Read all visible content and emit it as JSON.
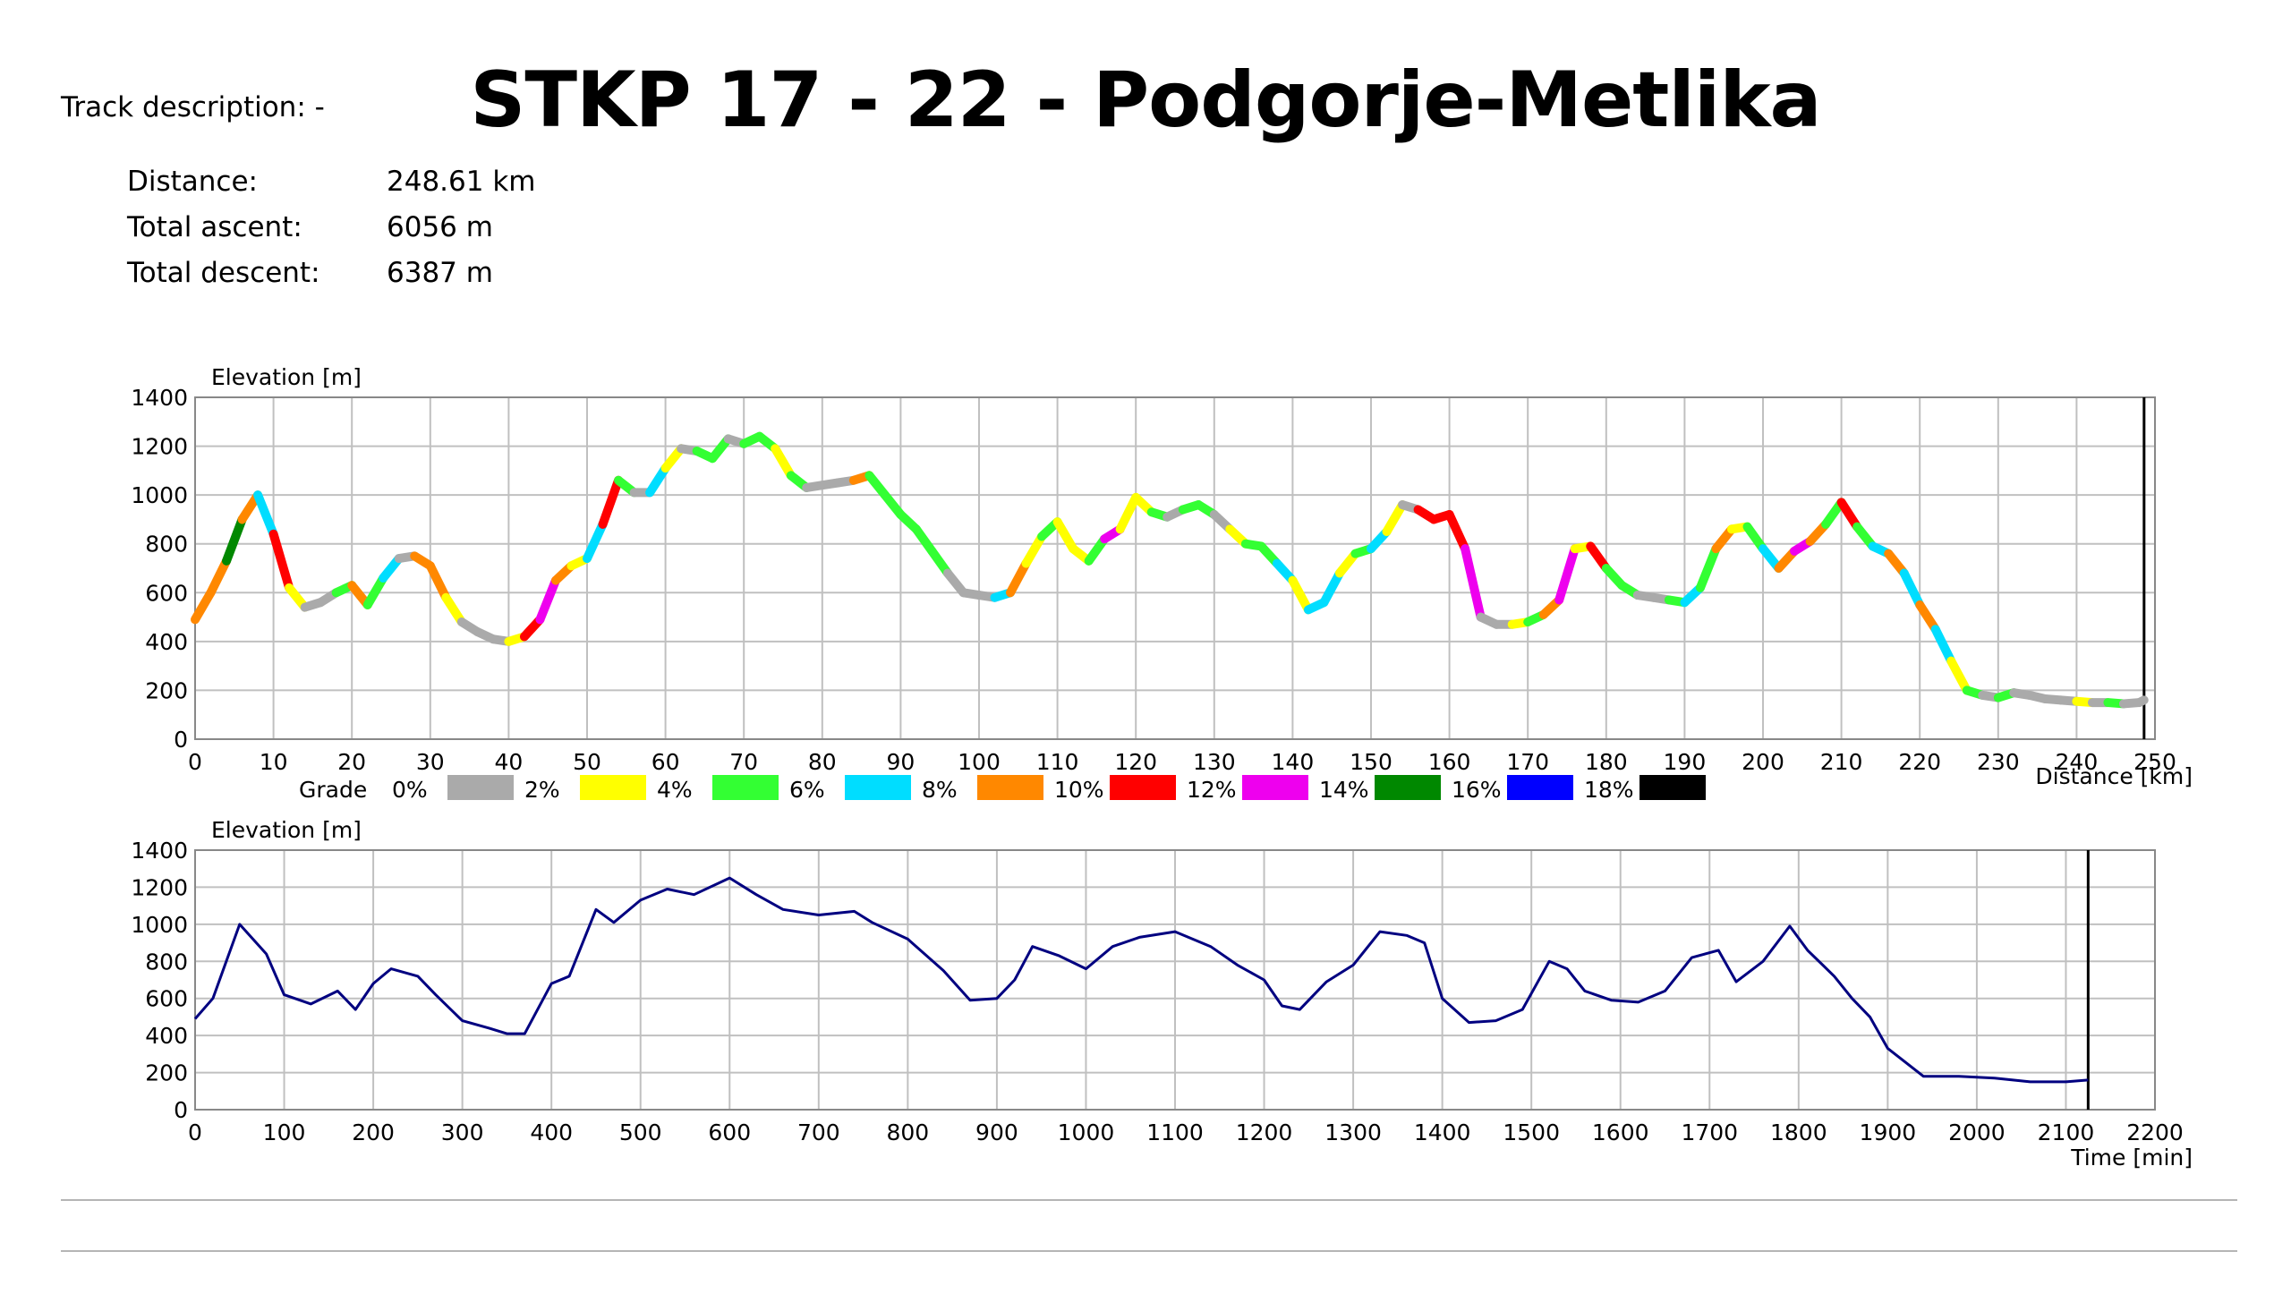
{
  "title": "STKP 17 - 22 - Podgorje-Metlika",
  "track_description": "Track description: -",
  "stats": [
    {
      "label": "Distance:",
      "value": "248.61 km"
    },
    {
      "label": "Total ascent:",
      "value": "6056 m"
    },
    {
      "label": "Total descent:",
      "value": "6387 m"
    }
  ],
  "colors": {
    "grade_0": "#aaaaaa",
    "grade_2": "#ffff00",
    "grade_4": "#33ff33",
    "grade_6": "#00ddff",
    "grade_8": "#ff8800",
    "grade_10": "#ff0000",
    "grade_12": "#ee00ee",
    "grade_14": "#008800",
    "grade_16": "#0000ff",
    "grade_18": "#000000",
    "time_line": "#000080",
    "grid": "#c0c0c0"
  },
  "legend": {
    "title": "Grade",
    "items": [
      {
        "label": "0%",
        "color": "#aaaaaa"
      },
      {
        "label": "2%",
        "color": "#ffff00"
      },
      {
        "label": "4%",
        "color": "#33ff33"
      },
      {
        "label": "6%",
        "color": "#00ddff"
      },
      {
        "label": "8%",
        "color": "#ff8800"
      },
      {
        "label": "10%",
        "color": "#ff0000"
      },
      {
        "label": "12%",
        "color": "#ee00ee"
      },
      {
        "label": "14%",
        "color": "#008800"
      },
      {
        "label": "16%",
        "color": "#0000ff"
      },
      {
        "label": "18%",
        "color": "#000000"
      }
    ]
  },
  "chart_data": [
    {
      "type": "line",
      "ylabel": "Elevation [m]",
      "xlabel": "Distance [km]",
      "xlim": [
        0,
        250
      ],
      "ylim": [
        0,
        1400
      ],
      "xticks": [
        0,
        10,
        20,
        30,
        40,
        50,
        60,
        70,
        80,
        90,
        100,
        110,
        120,
        130,
        140,
        150,
        160,
        170,
        180,
        190,
        200,
        210,
        220,
        230,
        240,
        250
      ],
      "yticks": [
        0,
        200,
        400,
        600,
        800,
        1000,
        1200,
        1400
      ],
      "grid": true,
      "end_marker_x": 248.61,
      "x": [
        0,
        2,
        4,
        6,
        8,
        10,
        12,
        14,
        16,
        18,
        20,
        22,
        24,
        26,
        28,
        30,
        32,
        34,
        36,
        38,
        40,
        42,
        44,
        46,
        48,
        50,
        52,
        54,
        56,
        58,
        60,
        62,
        64,
        66,
        68,
        70,
        72,
        74,
        76,
        78,
        80,
        82,
        84,
        86,
        88,
        90,
        92,
        94,
        96,
        98,
        100,
        102,
        104,
        106,
        108,
        110,
        112,
        114,
        116,
        118,
        120,
        122,
        124,
        126,
        128,
        130,
        132,
        134,
        136,
        138,
        140,
        142,
        144,
        146,
        148,
        150,
        152,
        154,
        156,
        158,
        160,
        162,
        164,
        166,
        168,
        170,
        172,
        174,
        176,
        178,
        180,
        182,
        184,
        186,
        188,
        190,
        192,
        194,
        196,
        198,
        200,
        202,
        204,
        206,
        208,
        210,
        212,
        214,
        216,
        218,
        220,
        222,
        224,
        226,
        228,
        230,
        232,
        234,
        236,
        238,
        240,
        242,
        244,
        246,
        248,
        248.6
      ],
      "y": [
        490,
        600,
        730,
        900,
        1000,
        840,
        620,
        540,
        560,
        600,
        630,
        550,
        660,
        740,
        750,
        710,
        580,
        480,
        440,
        410,
        400,
        420,
        490,
        650,
        710,
        740,
        880,
        1060,
        1010,
        1010,
        1110,
        1190,
        1180,
        1150,
        1230,
        1210,
        1240,
        1190,
        1080,
        1030,
        1040,
        1050,
        1060,
        1080,
        1000,
        920,
        860,
        770,
        680,
        600,
        590,
        580,
        600,
        720,
        830,
        890,
        780,
        730,
        820,
        860,
        990,
        930,
        910,
        940,
        960,
        920,
        860,
        800,
        790,
        720,
        650,
        530,
        560,
        680,
        760,
        780,
        850,
        960,
        940,
        900,
        920,
        780,
        500,
        470,
        470,
        480,
        510,
        570,
        780,
        790,
        700,
        630,
        590,
        580,
        570,
        560,
        620,
        780,
        860,
        870,
        780,
        700,
        770,
        810,
        880,
        970,
        870,
        790,
        760,
        680,
        550,
        450,
        320,
        200,
        180,
        170,
        190,
        180,
        165,
        160,
        155,
        150,
        150,
        145,
        150,
        160
      ],
      "grade_colors": [
        "#ff8800",
        "#ff8800",
        "#008800",
        "#ff8800",
        "#00ddff",
        "#ff0000",
        "#ffff00",
        "#aaaaaa",
        "#aaaaaa",
        "#33ff33",
        "#ff8800",
        "#33ff33",
        "#00ddff",
        "#aaaaaa",
        "#ff8800",
        "#ff8800",
        "#ffff00",
        "#aaaaaa",
        "#aaaaaa",
        "#aaaaaa",
        "#ffff00",
        "#ff0000",
        "#ee00ee",
        "#ff8800",
        "#ffff00",
        "#00ddff",
        "#ff0000",
        "#33ff33",
        "#aaaaaa",
        "#00ddff",
        "#ffff00",
        "#aaaaaa",
        "#33ff33",
        "#33ff33",
        "#aaaaaa",
        "#33ff33",
        "#33ff33",
        "#ffff00",
        "#33ff33",
        "#aaaaaa",
        "#aaaaaa",
        "#aaaaaa",
        "#ff8800",
        "#33ff33",
        "#33ff33",
        "#33ff33",
        "#33ff33",
        "#33ff33",
        "#aaaaaa",
        "#aaaaaa",
        "#aaaaaa",
        "#00ddff",
        "#ff8800",
        "#ffff00",
        "#33ff33",
        "#ffff00",
        "#ffff00",
        "#33ff33",
        "#ee00ee",
        "#ffff00",
        "#ffff00",
        "#33ff33",
        "#aaaaaa",
        "#33ff33",
        "#33ff33",
        "#aaaaaa",
        "#ffff00",
        "#33ff33",
        "#33ff33",
        "#00ddff",
        "#ffff00",
        "#00ddff",
        "#00ddff",
        "#ffff00",
        "#33ff33",
        "#00ddff",
        "#ffff00",
        "#aaaaaa",
        "#ff0000",
        "#ff0000",
        "#ff0000",
        "#ee00ee",
        "#aaaaaa",
        "#aaaaaa",
        "#ffff00",
        "#33ff33",
        "#ff8800",
        "#ee00ee",
        "#ffff00",
        "#ff0000",
        "#33ff33",
        "#33ff33",
        "#aaaaaa",
        "#aaaaaa",
        "#33ff33",
        "#00ddff",
        "#33ff33",
        "#ff8800",
        "#ffff00",
        "#33ff33",
        "#00ddff",
        "#ff8800",
        "#ee00ee",
        "#ff8800",
        "#33ff33",
        "#ff0000",
        "#33ff33",
        "#00ddff",
        "#ff8800",
        "#00ddff",
        "#ff8800",
        "#00ddff",
        "#ffff00",
        "#33ff33",
        "#aaaaaa",
        "#33ff33",
        "#aaaaaa",
        "#aaaaaa",
        "#aaaaaa",
        "#aaaaaa",
        "#ffff00",
        "#aaaaaa",
        "#33ff33",
        "#aaaaaa",
        "#aaaaaa"
      ]
    },
    {
      "type": "line",
      "ylabel": "Elevation [m]",
      "xlabel": "Time [min]",
      "xlim": [
        0,
        2200
      ],
      "ylim": [
        0,
        1400
      ],
      "xticks": [
        0,
        100,
        200,
        300,
        400,
        500,
        600,
        700,
        800,
        900,
        1000,
        1100,
        1200,
        1300,
        1400,
        1500,
        1600,
        1700,
        1800,
        1900,
        2000,
        2100,
        2200
      ],
      "yticks": [
        0,
        200,
        400,
        600,
        800,
        1000,
        1200,
        1400
      ],
      "grid": true,
      "end_marker_x": 2125,
      "x": [
        0,
        20,
        50,
        80,
        100,
        130,
        160,
        180,
        200,
        220,
        250,
        270,
        300,
        330,
        350,
        370,
        400,
        420,
        450,
        470,
        500,
        530,
        560,
        600,
        630,
        660,
        700,
        740,
        760,
        800,
        840,
        870,
        900,
        920,
        940,
        970,
        1000,
        1030,
        1060,
        1100,
        1140,
        1170,
        1200,
        1220,
        1240,
        1270,
        1300,
        1330,
        1360,
        1380,
        1400,
        1430,
        1460,
        1490,
        1520,
        1540,
        1560,
        1590,
        1620,
        1650,
        1680,
        1710,
        1730,
        1760,
        1790,
        1810,
        1840,
        1860,
        1880,
        1900,
        1940,
        1980,
        2020,
        2060,
        2100,
        2125
      ],
      "y": [
        490,
        600,
        1000,
        840,
        620,
        570,
        640,
        540,
        680,
        760,
        720,
        620,
        480,
        440,
        410,
        410,
        680,
        720,
        1080,
        1010,
        1130,
        1190,
        1160,
        1250,
        1160,
        1080,
        1050,
        1070,
        1010,
        920,
        750,
        590,
        600,
        700,
        880,
        830,
        760,
        880,
        930,
        960,
        880,
        780,
        700,
        560,
        540,
        690,
        780,
        960,
        940,
        900,
        600,
        470,
        480,
        540,
        800,
        760,
        640,
        590,
        580,
        640,
        820,
        860,
        690,
        800,
        990,
        860,
        720,
        600,
        500,
        330,
        180,
        180,
        170,
        150,
        150,
        160
      ]
    }
  ]
}
